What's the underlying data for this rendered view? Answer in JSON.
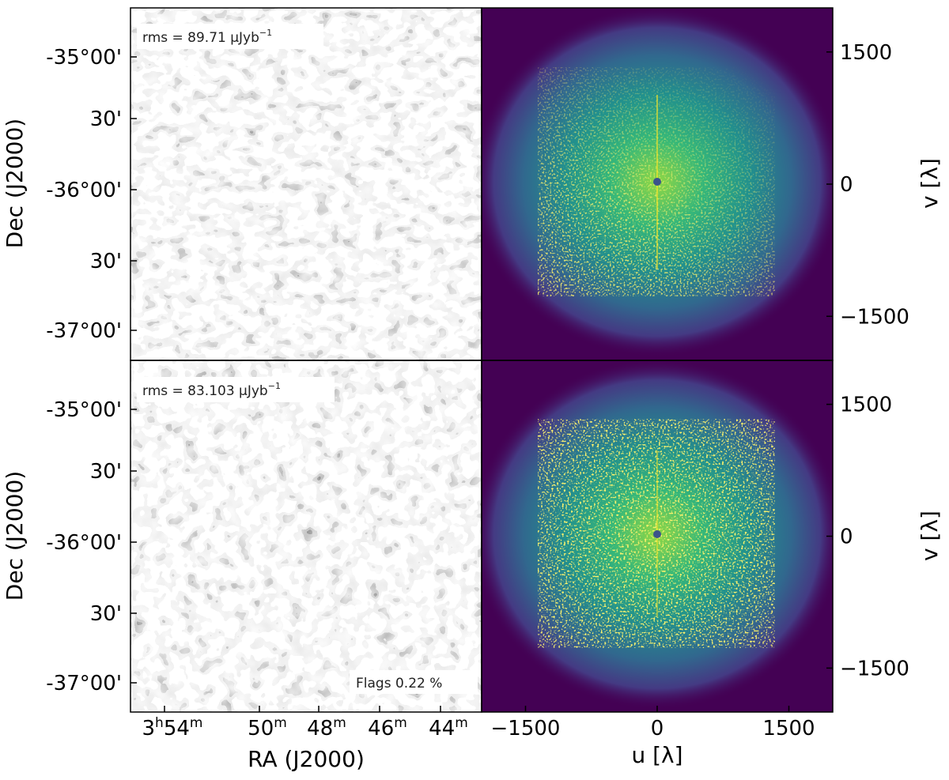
{
  "chart_data": {
    "type": "heatmap",
    "panels": [
      {
        "kind": "image-map",
        "colormap": "grey",
        "rms_label": "rms = 89.71 μJyb",
        "rms_exponent": "−1",
        "dec_ticks": [
          "-35°00'",
          "30'",
          "-36°00'",
          "30'",
          "-37°00'"
        ],
        "ylabel": "Dec  (J2000)"
      },
      {
        "kind": "uv-coverage",
        "colormap": "viridis",
        "yticks": [
          "1500",
          "0",
          "−1500"
        ],
        "ylabel": "v [λ]",
        "xlim": [
          -2000,
          2000
        ],
        "ylim": [
          -2000,
          2000
        ]
      },
      {
        "kind": "image-map",
        "colormap": "grey",
        "rms_label": "rms = 83.103 μJyb",
        "rms_exponent": "−1",
        "flags_label": "Flags 0.22 %",
        "dec_ticks": [
          "-35°00'",
          "30'",
          "-36°00'",
          "30'",
          "-37°00'"
        ],
        "ylabel": "Dec  (J2000)"
      },
      {
        "kind": "uv-coverage",
        "colormap": "viridis",
        "yticks": [
          "1500",
          "0",
          "−1500"
        ],
        "ylabel": "v [λ]",
        "xlim": [
          -2000,
          2000
        ],
        "ylim": [
          -2000,
          2000
        ]
      }
    ],
    "ra_ticks": [
      {
        "h": "3",
        "hs": "h",
        "m": "54",
        "ms": "m"
      },
      {
        "h": "",
        "hs": "",
        "m": "50",
        "ms": "m"
      },
      {
        "h": "",
        "hs": "",
        "m": "48",
        "ms": "m"
      },
      {
        "h": "",
        "hs": "",
        "m": "46",
        "ms": "m"
      },
      {
        "h": "",
        "hs": "",
        "m": "44",
        "ms": "m"
      }
    ],
    "xlabel_left": "RA  (J2000)",
    "uv_xticks": [
      "−1500",
      "0",
      "1500"
    ],
    "xlabel_right": "u [λ]",
    "uv_tick_values": [
      -1500,
      0,
      1500
    ]
  }
}
